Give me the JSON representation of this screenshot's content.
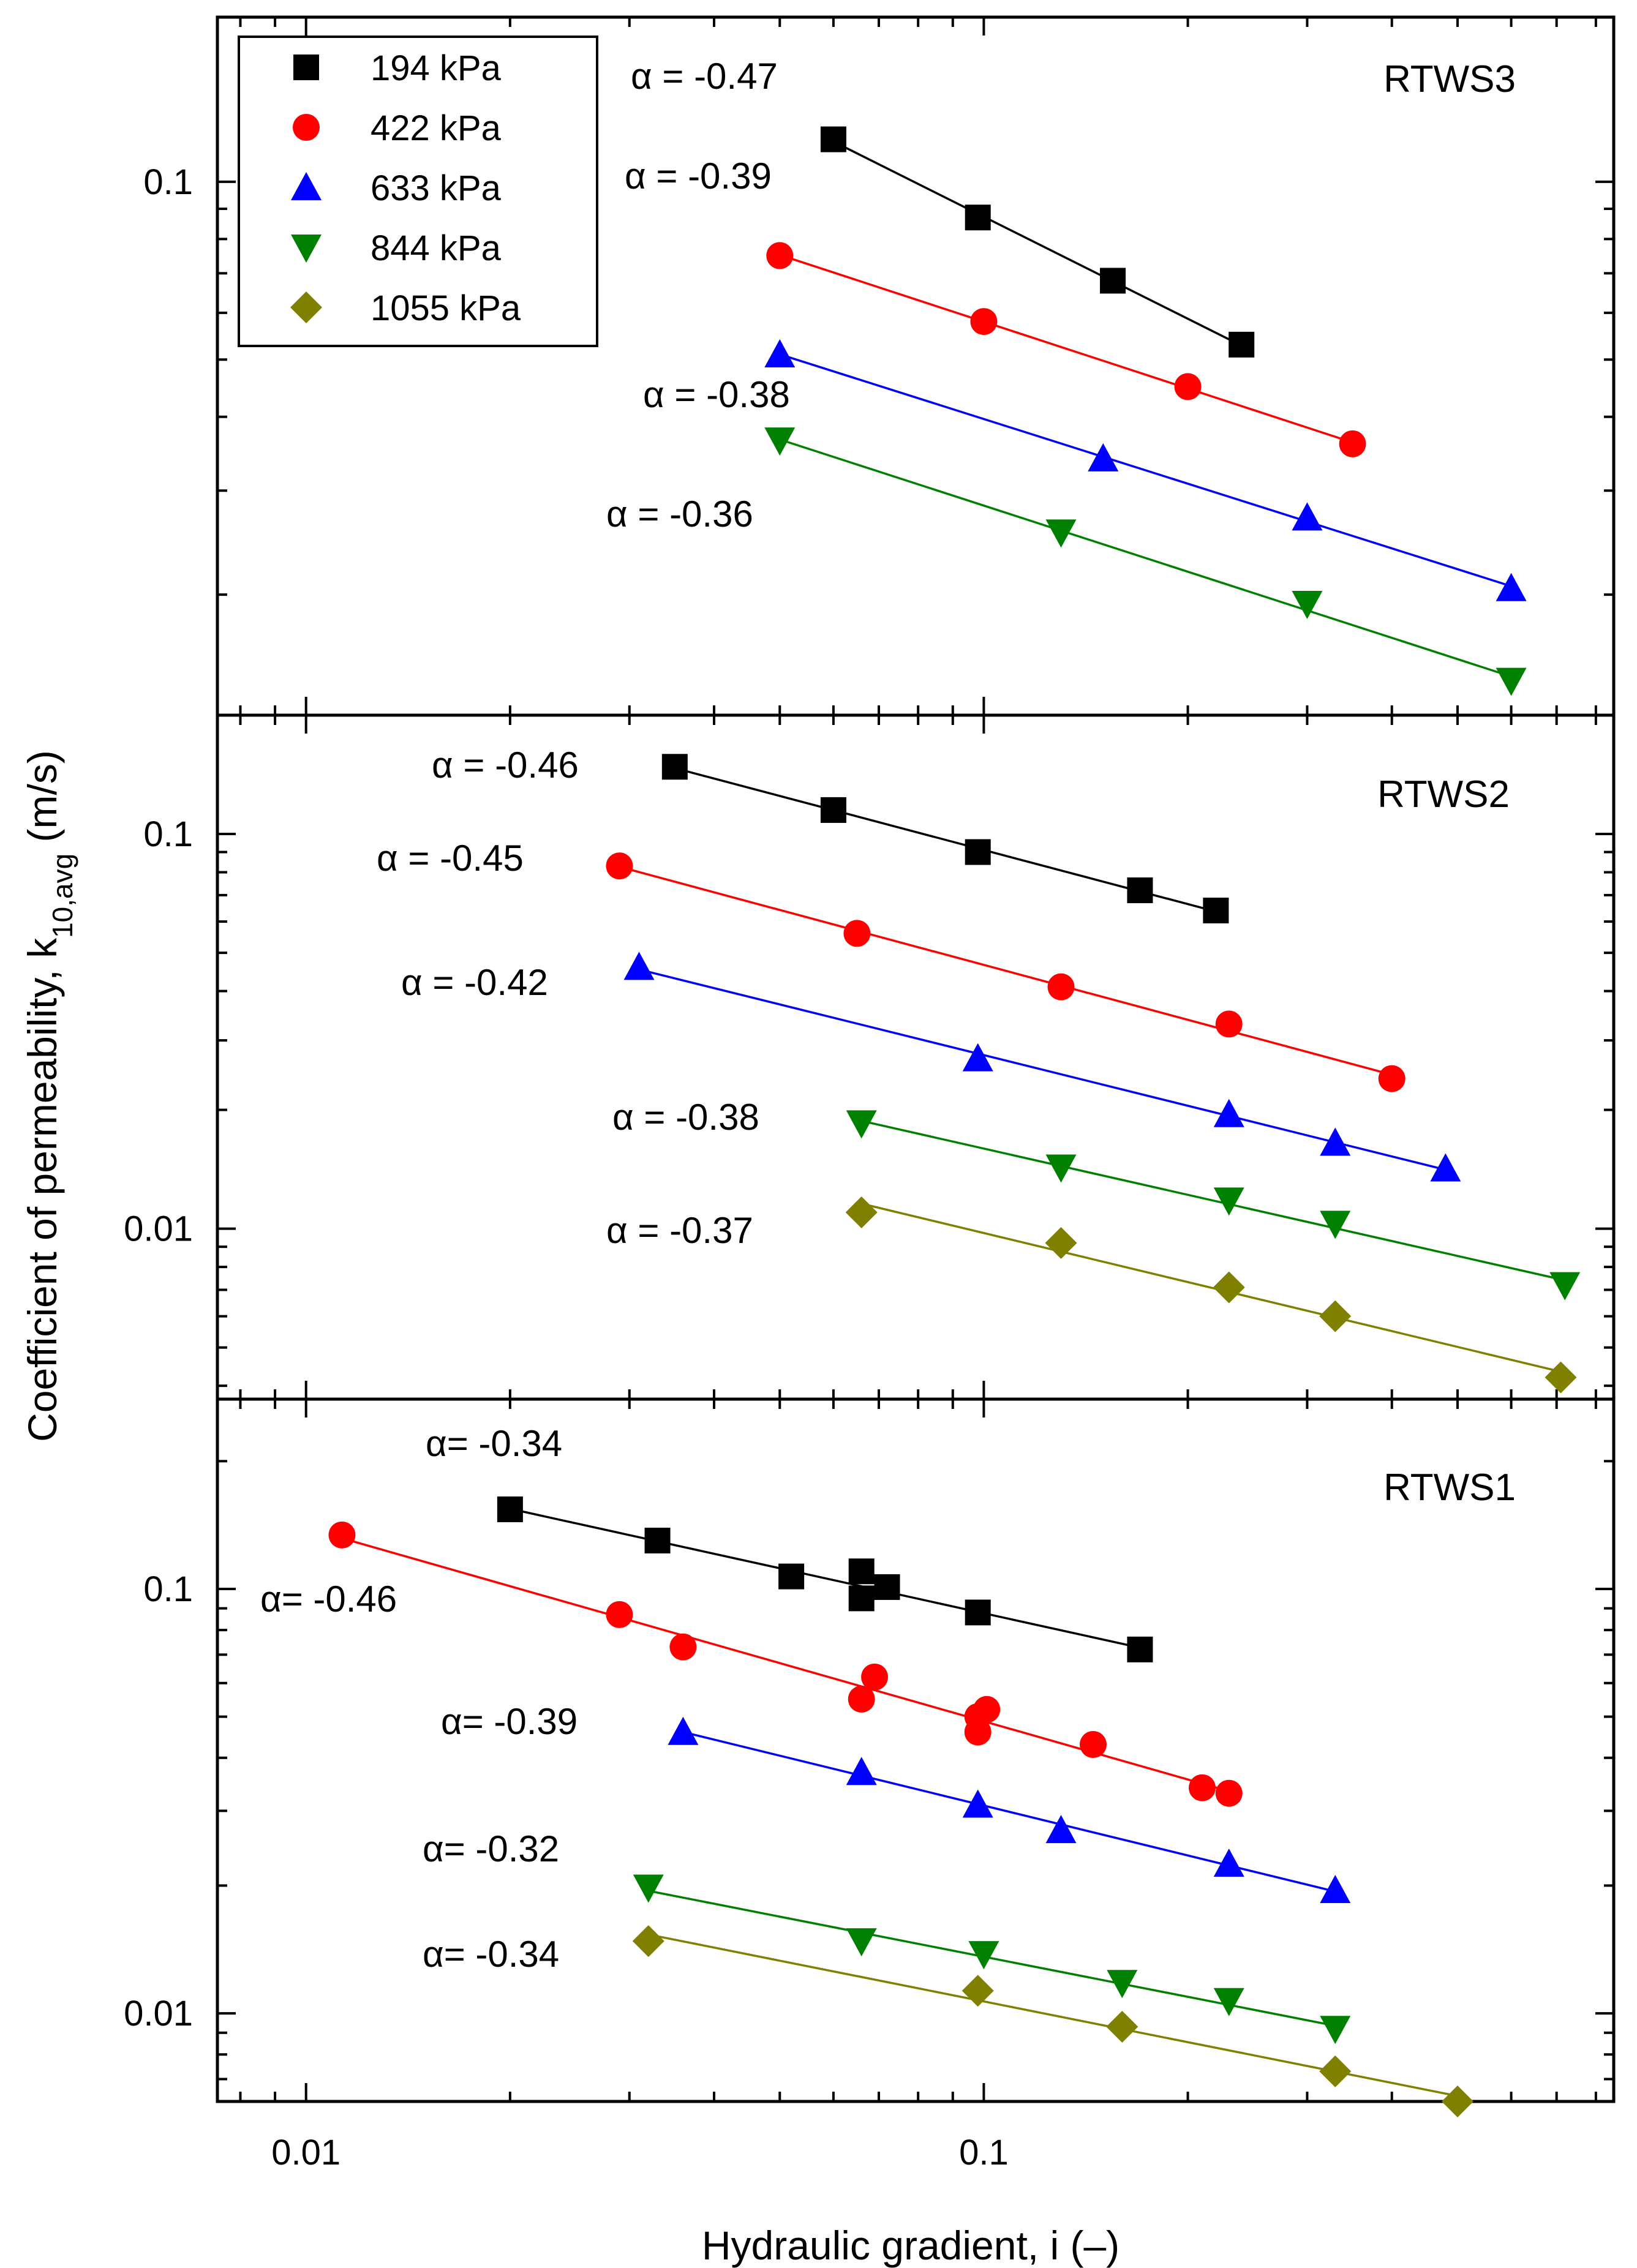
{
  "chart_data": {
    "type": "scatter",
    "title": "",
    "xlabel": "Hydraulic gradient, i (–)",
    "ylabel": {
      "prefix": "Coefficient of permeability, k",
      "subscript": "10,avg",
      "suffix": " (m/s)"
    },
    "xscale": "log",
    "yscale": "log",
    "xlim": [
      0.0074,
      0.85
    ],
    "x_ticks": [
      0.01,
      0.1
    ],
    "x_tick_labels": [
      "0.01",
      "0.1"
    ],
    "legend": {
      "placement": "top-left of top panel",
      "entries": [
        {
          "label": "194 kPa",
          "color": "#000000",
          "marker": "square"
        },
        {
          "label": "422 kPa",
          "color": "#ff0000",
          "marker": "circle"
        },
        {
          "label": "633 kPa",
          "color": "#0000ff",
          "marker": "triangle-up"
        },
        {
          "label": "844 kPa",
          "color": "#008000",
          "marker": "triangle-down"
        },
        {
          "label": "1055 kPa",
          "color": "#808000",
          "marker": "diamond"
        }
      ]
    },
    "panels": [
      {
        "name": "RTWS3",
        "ylim": [
          0.0125,
          0.19
        ],
        "y_ticks": [
          0.1
        ],
        "y_tick_labels": [
          "0.1"
        ],
        "series": [
          {
            "name": "194 kPa",
            "alpha_label": "α = -0.47",
            "x": [
              0.06,
              0.098,
              0.155,
              0.24
            ],
            "y": [
              0.118,
              0.087,
              0.068,
              0.053
            ]
          },
          {
            "name": "422 kPa",
            "alpha_label": "α = -0.39",
            "x": [
              0.05,
              0.1,
              0.2,
              0.35
            ],
            "y": [
              0.075,
              0.058,
              0.045,
              0.036
            ]
          },
          {
            "name": "633 kPa",
            "alpha_label": "α = -0.38",
            "x": [
              0.05,
              0.15,
              0.3,
              0.6
            ],
            "y": [
              0.051,
              0.034,
              0.027,
              0.0205
            ]
          },
          {
            "name": "844 kPa",
            "alpha_label": "α = -0.36",
            "x": [
              0.05,
              0.13,
              0.3,
              0.6
            ],
            "y": [
              0.0365,
              0.0255,
              0.0193,
              0.0143
            ]
          }
        ]
      },
      {
        "name": "RTWS2",
        "ylim": [
          0.0037,
          0.2
        ],
        "y_ticks": [
          0.01,
          0.1
        ],
        "y_tick_labels": [
          "0.01",
          "0.1"
        ],
        "series": [
          {
            "name": "194 kPa",
            "alpha_label": "α = -0.46",
            "x": [
              0.035,
              0.06,
              0.098,
              0.17,
              0.22
            ],
            "y": [
              0.148,
              0.115,
              0.09,
              0.072,
              0.064
            ]
          },
          {
            "name": "422 kPa",
            "alpha_label": "α = -0.45",
            "x": [
              0.029,
              0.065,
              0.13,
              0.23,
              0.4
            ],
            "y": [
              0.083,
              0.056,
              0.041,
              0.033,
              0.024
            ]
          },
          {
            "name": "633 kPa",
            "alpha_label": "α = -0.42",
            "x": [
              0.031,
              0.098,
              0.23,
              0.33,
              0.48
            ],
            "y": [
              0.046,
              0.027,
              0.0195,
              0.0165,
              0.0142
            ]
          },
          {
            "name": "844 kPa",
            "alpha_label": "α = -0.38",
            "x": [
              0.066,
              0.13,
              0.23,
              0.33,
              0.72
            ],
            "y": [
              0.0185,
              0.0143,
              0.0118,
              0.0103,
              0.0072
            ]
          },
          {
            "name": "1055 kPa",
            "alpha_label": "α = -0.37",
            "x": [
              0.066,
              0.13,
              0.23,
              0.33,
              0.71
            ],
            "y": [
              0.011,
              0.0092,
              0.0071,
              0.006,
              0.0042
            ]
          }
        ]
      },
      {
        "name": "RTWS1",
        "ylim": [
          0.0062,
          0.28
        ],
        "y_ticks": [
          0.01,
          0.1
        ],
        "y_tick_labels": [
          "0.01",
          "0.1"
        ],
        "series": [
          {
            "name": "194 kPa",
            "alpha_label": "α= -0.34",
            "x": [
              0.02,
              0.033,
              0.052,
              0.066,
              0.066,
              0.072,
              0.098,
              0.17
            ],
            "y": [
              0.154,
              0.13,
              0.107,
              0.11,
              0.095,
              0.101,
              0.088,
              0.072
            ]
          },
          {
            "name": "422 kPa",
            "alpha_label": "α= -0.46",
            "x": [
              0.0113,
              0.029,
              0.036,
              0.066,
              0.069,
              0.098,
              0.098,
              0.101,
              0.145,
              0.21,
              0.23
            ],
            "y": [
              0.134,
              0.087,
              0.073,
              0.055,
              0.062,
              0.05,
              0.046,
              0.052,
              0.043,
              0.034,
              0.033
            ]
          },
          {
            "name": "633 kPa",
            "alpha_label": "α= -0.39",
            "x": [
              0.036,
              0.066,
              0.098,
              0.13,
              0.23,
              0.33
            ],
            "y": [
              0.046,
              0.037,
              0.031,
              0.027,
              0.0225,
              0.0195
            ]
          },
          {
            "name": "844 kPa",
            "alpha_label": "α= -0.32",
            "x": [
              0.032,
              0.066,
              0.1,
              0.16,
              0.23,
              0.33
            ],
            "y": [
              0.0198,
              0.0148,
              0.0138,
              0.0118,
              0.0107,
              0.0092
            ]
          },
          {
            "name": "1055 kPa",
            "alpha_label": "α= -0.34",
            "x": [
              0.032,
              0.098,
              0.16,
              0.33,
              0.5
            ],
            "y": [
              0.0148,
              0.0113,
              0.0093,
              0.0073,
              0.0062
            ]
          }
        ]
      }
    ]
  }
}
